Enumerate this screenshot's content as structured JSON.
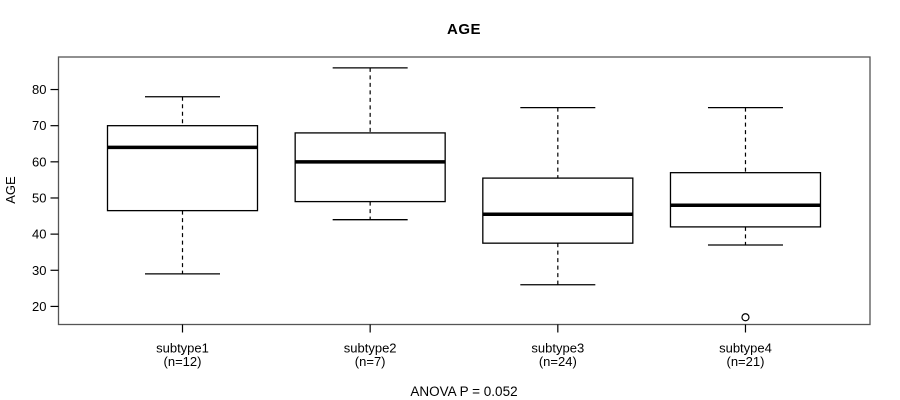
{
  "chart_data": {
    "type": "boxplot",
    "title": "AGE",
    "ylabel": "AGE",
    "xlabel": "",
    "footer": "ANOVA P = 0.052",
    "ylim": [
      15,
      89
    ],
    "yticks": [
      20,
      30,
      40,
      50,
      60,
      70,
      80
    ],
    "grid": false,
    "legend": "none",
    "categories": [
      "subtype1",
      "subtype2",
      "subtype3",
      "subtype4"
    ],
    "category_counts": [
      "(n=12)",
      "(n=7)",
      "(n=24)",
      "(n=21)"
    ],
    "series": [
      {
        "name": "subtype1",
        "n": 12,
        "whisker_low": 29,
        "q1": 46.5,
        "median": 64,
        "q3": 70,
        "whisker_high": 78,
        "outliers": []
      },
      {
        "name": "subtype2",
        "n": 7,
        "whisker_low": 44,
        "q1": 49,
        "median": 60,
        "q3": 68,
        "whisker_high": 86,
        "outliers": []
      },
      {
        "name": "subtype3",
        "n": 24,
        "whisker_low": 26,
        "q1": 37.5,
        "median": 45.5,
        "q3": 55.5,
        "whisker_high": 75,
        "outliers": []
      },
      {
        "name": "subtype4",
        "n": 21,
        "whisker_low": 37,
        "q1": 42,
        "median": 48,
        "q3": 57,
        "whisker_high": 75,
        "outliers": [
          17
        ]
      }
    ],
    "colors": {
      "background": "#ffffff",
      "box_fill": "#ffffff",
      "stroke": "#000000",
      "plot_border": "#555555",
      "text": "#000000"
    }
  }
}
